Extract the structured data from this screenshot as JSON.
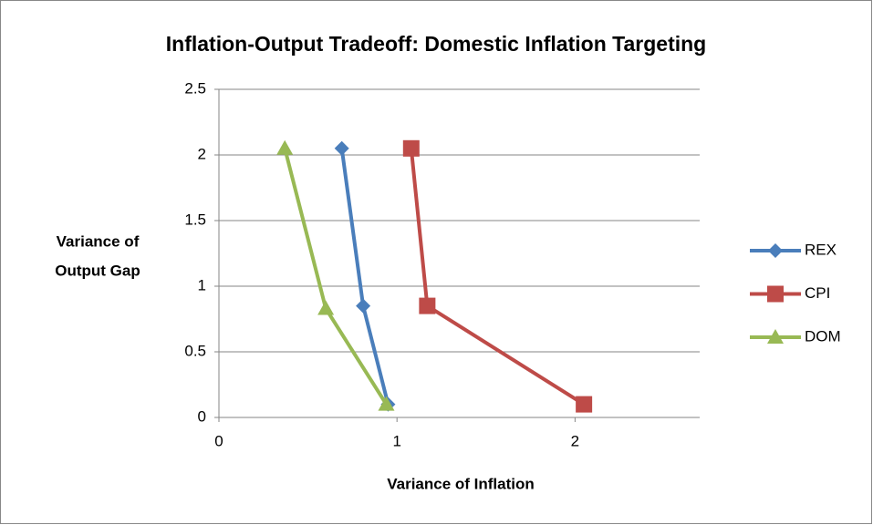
{
  "chart_data": {
    "type": "line",
    "title": "Inflation-Output Tradeoff: Domestic Inflation Targeting",
    "xlabel": "Variance of Inflation",
    "ylabel": [
      "Variance of",
      "Output Gap"
    ],
    "xlim": [
      0,
      2.7
    ],
    "xticks": [
      0,
      1,
      2
    ],
    "ylim": [
      0,
      2.5
    ],
    "yticks": [
      0,
      0.5,
      1,
      1.5,
      2,
      2.5
    ],
    "grid": true,
    "legend": "right",
    "series": [
      {
        "name": "REX",
        "color": "#4a7ebb",
        "marker": "diamond",
        "x": [
          0.69,
          0.81,
          0.95
        ],
        "values": [
          2.05,
          0.85,
          0.1
        ]
      },
      {
        "name": "CPI",
        "color": "#be4b48",
        "marker": "square",
        "x": [
          1.08,
          1.17,
          2.05
        ],
        "values": [
          2.05,
          0.85,
          0.1
        ]
      },
      {
        "name": "DOM",
        "color": "#98b954",
        "marker": "triangle",
        "x": [
          0.37,
          0.6,
          0.94
        ],
        "values": [
          2.05,
          0.83,
          0.1
        ]
      }
    ]
  }
}
